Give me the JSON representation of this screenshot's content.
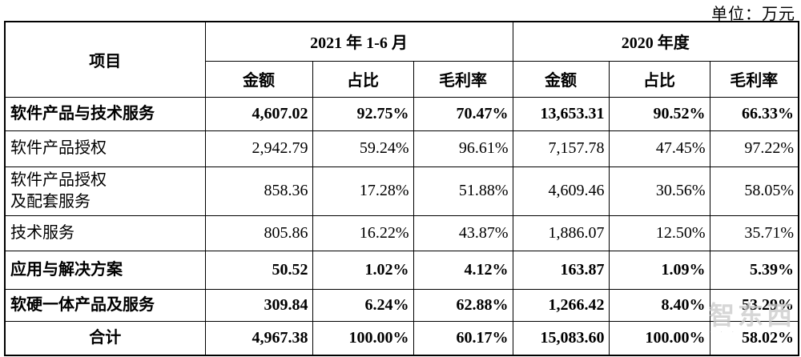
{
  "page": {
    "unit_label": "单位：万元"
  },
  "table": {
    "item_header": "项目",
    "col_groups": [
      {
        "label": "2021 年 1-6 月",
        "sub_headers": [
          "金额",
          "占比",
          "毛利率"
        ]
      },
      {
        "label": "2020 年度",
        "sub_headers": [
          "金额",
          "占比",
          "毛利率"
        ]
      }
    ],
    "rows": [
      {
        "item": "软件产品与技术服务",
        "bold": true,
        "align": "left",
        "values": [
          "4,607.02",
          "92.75%",
          "70.47%",
          "13,653.31",
          "90.52%",
          "66.33%"
        ]
      },
      {
        "item": "软件产品授权",
        "bold": false,
        "align": "left",
        "values": [
          "2,942.79",
          "59.24%",
          "96.61%",
          "7,157.78",
          "47.45%",
          "97.22%"
        ]
      },
      {
        "item": "软件产品授权\n及配套服务",
        "bold": false,
        "align": "left",
        "values": [
          "858.36",
          "17.28%",
          "51.88%",
          "4,609.46",
          "30.56%",
          "58.05%"
        ]
      },
      {
        "item": "技术服务",
        "bold": false,
        "align": "left",
        "values": [
          "805.86",
          "16.22%",
          "43.87%",
          "1,886.07",
          "12.50%",
          "35.71%"
        ]
      },
      {
        "item": "应用与解决方案",
        "bold": true,
        "align": "left",
        "values": [
          "50.52",
          "1.02%",
          "4.12%",
          "163.87",
          "1.09%",
          "5.39%"
        ]
      },
      {
        "item": "软硬一体产品及服务",
        "bold": true,
        "align": "left",
        "values": [
          "309.84",
          "6.24%",
          "62.88%",
          "1,266.42",
          "8.40%",
          "53.29%"
        ]
      },
      {
        "item": "合计",
        "bold": true,
        "align": "center",
        "values": [
          "4,967.38",
          "100.00%",
          "60.17%",
          "15,083.60",
          "100.00%",
          "58.02%"
        ]
      }
    ]
  },
  "watermark": {
    "text": "智东西",
    "subtext": "· · · · · · · ·"
  },
  "colors": {
    "background": "#ffffff",
    "text": "#000000",
    "border": "#000000",
    "watermark": "#c9c9c9"
  }
}
